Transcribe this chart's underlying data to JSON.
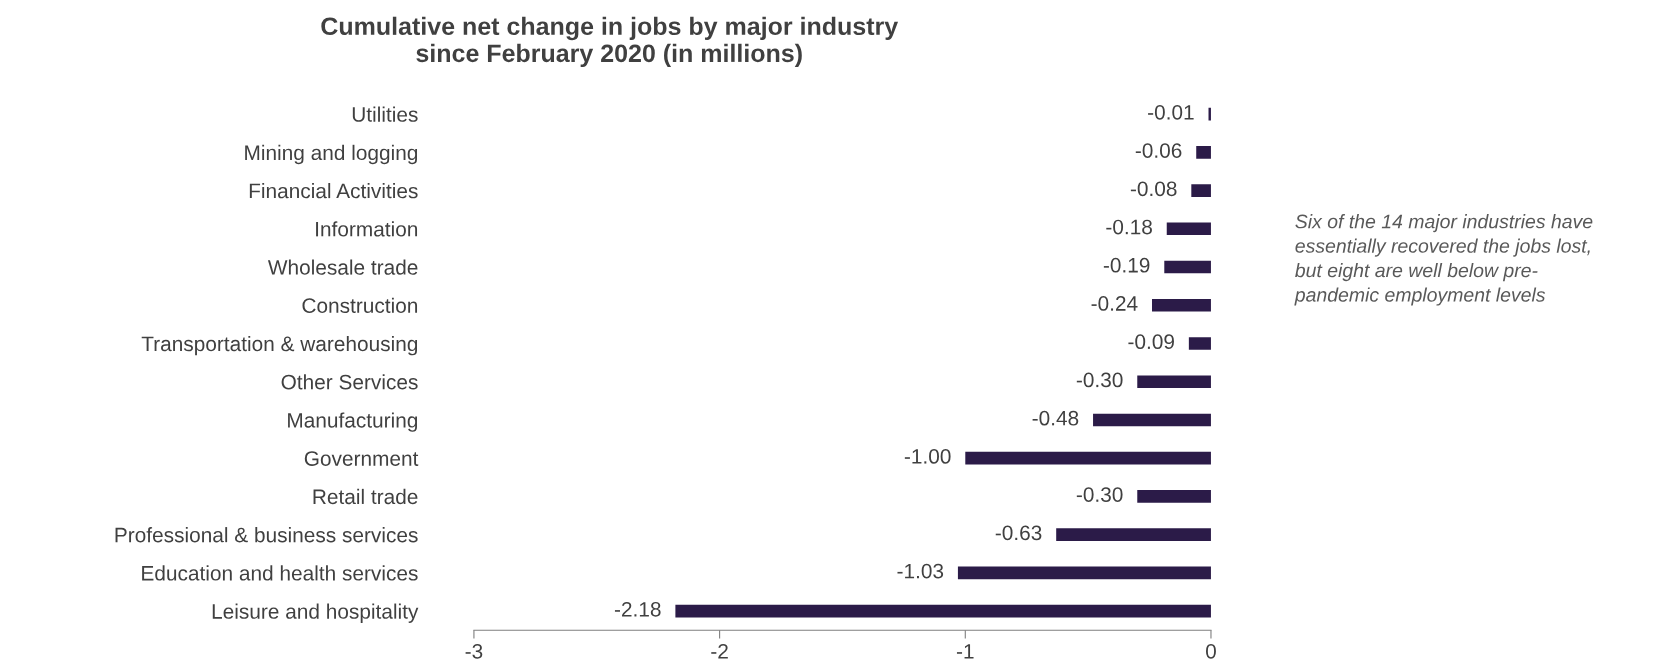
{
  "chart_data": {
    "type": "bar",
    "orientation": "horizontal",
    "title": "Cumulative net change in jobs by major industry\nsince February 2020 (in millions)",
    "categories": [
      "Utilities",
      "Mining and logging",
      "Financial Activities",
      "Information",
      "Wholesale trade",
      "Construction",
      "Transportation & warehousing",
      "Other Services",
      "Manufacturing",
      "Government",
      "Retail trade",
      "Professional & business services",
      "Education and health services",
      "Leisure and hospitality"
    ],
    "values": [
      -0.01,
      -0.06,
      -0.08,
      -0.18,
      -0.19,
      -0.24,
      -0.09,
      -0.3,
      -0.48,
      -1.0,
      -0.3,
      -0.63,
      -1.03,
      -2.18
    ],
    "value_labels": [
      "-0.01",
      "-0.06",
      "-0.08",
      "-0.18",
      "-0.19",
      "-0.24",
      "-0.09",
      "-0.30",
      "-0.48",
      "-1.00",
      "-0.30",
      "-0.63",
      "-1.03",
      "-2.18"
    ],
    "color": "#2b1b48",
    "xlim": [
      -3,
      0
    ],
    "xticks": [
      -3,
      -2,
      -1,
      0
    ],
    "grid": false,
    "annotations": [
      "Six of the 14 major industries have\nessentially recovered the jobs lost,\nbut eight are well below pre-\npandemic employment levels"
    ]
  }
}
